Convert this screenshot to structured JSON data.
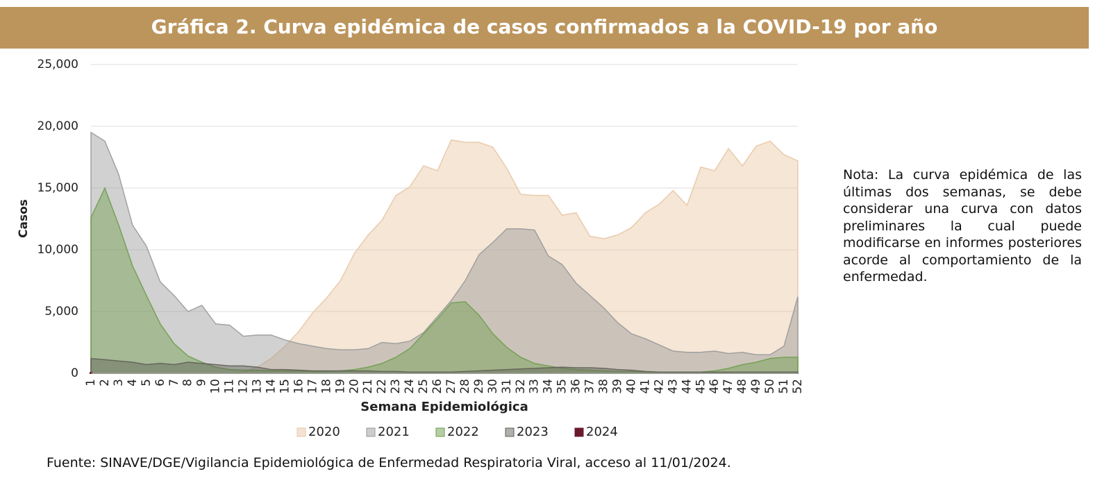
{
  "chart_data": {
    "type": "area",
    "title": "Gráfica 2. Curva epidémica de casos confirmados a la COVID-19 por año",
    "x_label": "Semana Epidemiológica",
    "y_label": "Casos",
    "note": "Nota: La curva epidémica de las últimas dos semanas, se debe considerar una curva con datos preliminares la cual puede modificarse en informes posteriores acorde al comportamiento de la enfermedad.",
    "source": "Fuente: SINAVE/DGE/Vigilancia Epidemiológica de Enfermedad Respiratoria Viral, acceso al 11/01/2024.",
    "categories": [
      "1",
      "2",
      "3",
      "4",
      "5",
      "6",
      "7",
      "8",
      "9",
      "10",
      "11",
      "12",
      "13",
      "14",
      "15",
      "16",
      "17",
      "18",
      "19",
      "20",
      "21",
      "22",
      "23",
      "24",
      "25",
      "26",
      "27",
      "28",
      "29",
      "30",
      "31",
      "32",
      "33",
      "34",
      "35",
      "36",
      "37",
      "38",
      "39",
      "40",
      "41",
      "42",
      "43",
      "44",
      "45",
      "46",
      "47",
      "48",
      "49",
      "50",
      "51",
      "52"
    ],
    "ylim": [
      0,
      25000
    ],
    "yticks": [
      0,
      {
        "value": 5000,
        "label": "5,000"
      },
      {
        "value": 10000,
        "label": "10,000"
      },
      {
        "value": 15000,
        "label": "15,000"
      },
      {
        "value": 20000,
        "label": "20,000"
      },
      {
        "value": 25000,
        "label": "25,000"
      }
    ],
    "grid": true,
    "legend": "bottom",
    "series": [
      {
        "name": "2020",
        "color": "#e9c7a5",
        "values": [
          0,
          0,
          0,
          0,
          0,
          0,
          0,
          0,
          0,
          0,
          0,
          100,
          500,
          1200,
          2200,
          3400,
          4900,
          6100,
          7500,
          9700,
          11200,
          12400,
          14400,
          15100,
          16800,
          16400,
          18900,
          18700,
          18700,
          18300,
          16600,
          14500,
          14400,
          14400,
          12800,
          13000,
          11100,
          10900,
          11200,
          11800,
          13000,
          13700,
          14800,
          13600,
          16700,
          16400,
          18200,
          16800,
          18400,
          18800,
          17700,
          17200
        ]
      },
      {
        "name": "2021",
        "color": "#9a9a9a",
        "values": [
          19500,
          18800,
          16100,
          12000,
          10300,
          7400,
          6300,
          5000,
          5500,
          4000,
          3900,
          3000,
          3100,
          3100,
          2700,
          2400,
          2200,
          2000,
          1900,
          1900,
          2000,
          2500,
          2400,
          2600,
          3300,
          4600,
          5900,
          7500,
          9600,
          10600,
          11700,
          11700,
          11600,
          9500,
          8800,
          7300,
          6300,
          5300,
          4100,
          3200,
          2800,
          2300,
          1800,
          1700,
          1700,
          1800,
          1600,
          1700,
          1500,
          1500,
          2200,
          6200
        ]
      },
      {
        "name": "2022",
        "color": "#6e9e4c",
        "values": [
          12600,
          15000,
          12000,
          8700,
          6300,
          4000,
          2400,
          1400,
          900,
          500,
          300,
          250,
          250,
          200,
          200,
          200,
          150,
          150,
          200,
          300,
          500,
          800,
          1300,
          2000,
          3200,
          4400,
          5700,
          5800,
          4700,
          3200,
          2100,
          1300,
          800,
          600,
          400,
          300,
          250,
          200,
          150,
          150,
          100,
          100,
          100,
          100,
          100,
          200,
          400,
          700,
          900,
          1200,
          1300,
          1300
        ]
      },
      {
        "name": "2023",
        "color": "#5f5f57",
        "values": [
          1200,
          1100,
          1000,
          900,
          700,
          800,
          700,
          900,
          800,
          700,
          600,
          600,
          500,
          300,
          300,
          250,
          200,
          200,
          200,
          200,
          200,
          150,
          150,
          100,
          100,
          100,
          100,
          150,
          200,
          250,
          300,
          350,
          400,
          450,
          500,
          450,
          450,
          400,
          300,
          250,
          150,
          100,
          100,
          100,
          100,
          100,
          100,
          100,
          100,
          100,
          100,
          100
        ]
      },
      {
        "name": "2024",
        "color": "#6b1a2e",
        "values": [
          50,
          null,
          null,
          null,
          null,
          null,
          null,
          null,
          null,
          null,
          null,
          null,
          null,
          null,
          null,
          null,
          null,
          null,
          null,
          null,
          null,
          null,
          null,
          null,
          null,
          null,
          null,
          null,
          null,
          null,
          null,
          null,
          null,
          null,
          null,
          null,
          null,
          null,
          null,
          null,
          null,
          null,
          null,
          null,
          null,
          null,
          null,
          null,
          null,
          null,
          null,
          null
        ]
      }
    ]
  }
}
